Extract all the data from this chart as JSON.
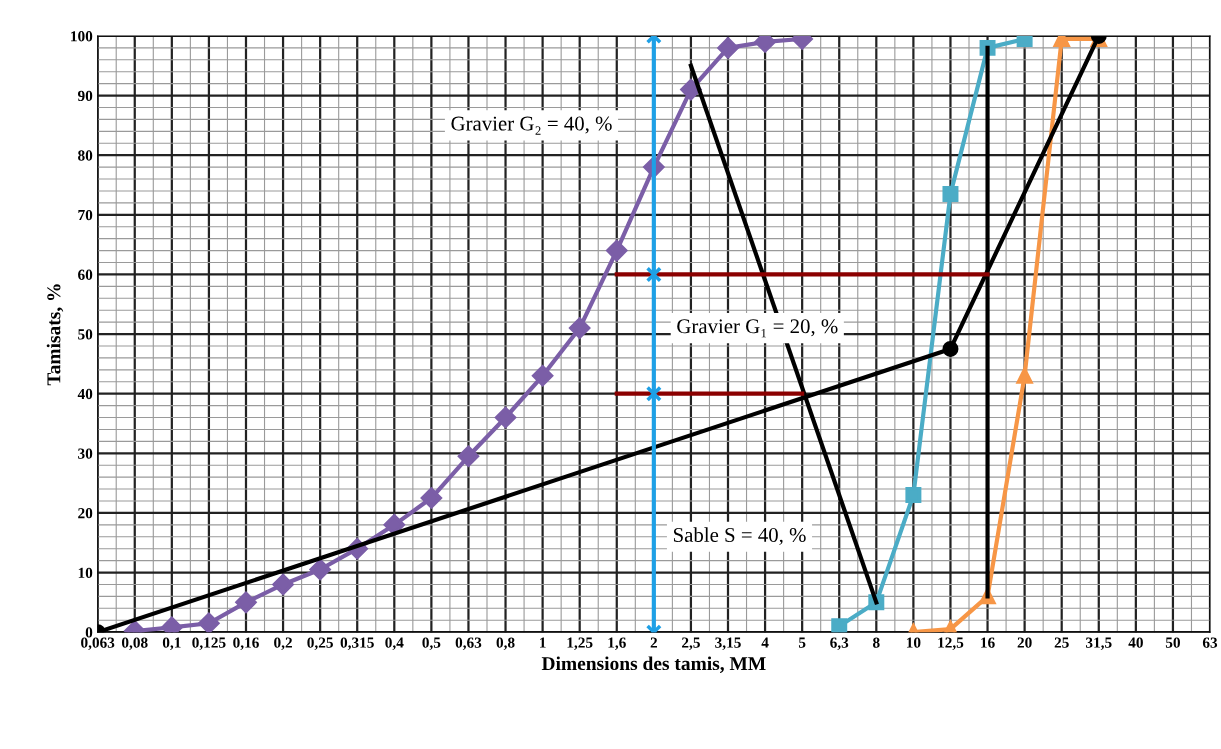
{
  "chart_data": {
    "type": "line",
    "xlabel": "Dimensions des tamis, MM",
    "ylabel": "Tamisats, %",
    "categories": [
      "0,063",
      "0,08",
      "0,1",
      "0,125",
      "0,16",
      "0,2",
      "0,25",
      "0,315",
      "0,4",
      "0,5",
      "0,63",
      "0,8",
      "1",
      "1,25",
      "1,6",
      "2",
      "2,5",
      "3,15",
      "4",
      "5",
      "6,3",
      "8",
      "10",
      "12,5",
      "16",
      "20",
      "25",
      "31,5",
      "40",
      "50",
      "63"
    ],
    "ylim": [
      0,
      100
    ],
    "yticks": [
      0,
      10,
      20,
      30,
      40,
      50,
      60,
      70,
      80,
      90,
      100
    ],
    "grid": true,
    "series": [
      {
        "color": "#7b5ea7",
        "marker": "diamond",
        "x": [
          "0,08",
          "0,1",
          "0,125",
          "0,16",
          "0,2",
          "0,25",
          "0,315",
          "0,4",
          "0,5",
          "0,63",
          "0,8",
          "1",
          "1,25",
          "1,6",
          "2",
          "2,5",
          "3,15",
          "4",
          "5"
        ],
        "values": [
          0.2,
          0.8,
          1.5,
          5,
          8,
          10.5,
          14,
          18,
          22.5,
          29.5,
          36,
          43,
          51,
          64,
          78,
          91,
          98,
          99,
          99.5
        ]
      },
      {
        "color": "#4bacc6",
        "marker": "square",
        "x": [
          "6,3",
          "8",
          "10",
          "12,5",
          "16",
          "20"
        ],
        "values": [
          1,
          5,
          23,
          73.5,
          98,
          99.5
        ]
      },
      {
        "color": "#f79646",
        "marker": "triangle",
        "x": [
          "10",
          "12,5",
          "16",
          "20",
          "25",
          "31,5"
        ],
        "values": [
          0,
          0.5,
          6,
          43,
          99.5,
          99.5
        ]
      },
      {
        "color": "#000000",
        "marker": "circle",
        "x": [
          "0,063",
          "12,5",
          "31,5"
        ],
        "values": [
          0,
          47.5,
          100
        ]
      },
      {
        "color": "#000000",
        "marker": "none",
        "x": [
          "2,5",
          "8"
        ],
        "values": [
          95,
          5
        ]
      },
      {
        "color": "#000000",
        "marker": "none",
        "x": [
          "16",
          "16"
        ],
        "values": [
          98,
          6
        ]
      },
      {
        "color": "#8b0000",
        "marker": "none",
        "x": [
          "1,6",
          "16"
        ],
        "values": [
          60,
          60
        ]
      },
      {
        "color": "#8b0000",
        "marker": "none",
        "x": [
          "1,6",
          "5"
        ],
        "values": [
          40,
          40
        ]
      },
      {
        "color": "#1ea0e6",
        "marker": "cross",
        "x": [
          "2",
          "2",
          "2",
          "2"
        ],
        "values": [
          0,
          40,
          60,
          100
        ]
      }
    ],
    "annotations": [
      "Gravier G₂ = 40, %",
      "Gravier G₁ = 20, %",
      "Sable S = 40, %"
    ]
  }
}
